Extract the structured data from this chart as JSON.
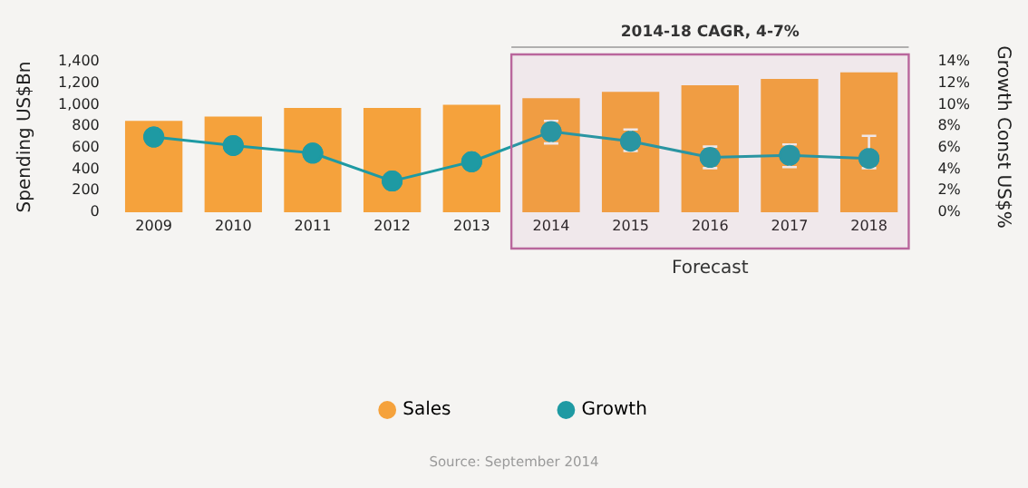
{
  "chart_data": {
    "type": "bar",
    "categories": [
      "2009",
      "2010",
      "2011",
      "2012",
      "2013",
      "2014",
      "2015",
      "2016",
      "2017",
      "2018"
    ],
    "series": [
      {
        "name": "Sales",
        "color": "#f5a23c",
        "values": [
          850,
          890,
          970,
          970,
          1000,
          1060,
          1120,
          1180,
          1240,
          1300
        ]
      },
      {
        "name": "Growth",
        "type": "line",
        "axis": "y2",
        "color": "#1e9aa3",
        "values": [
          7.0,
          6.2,
          5.5,
          2.9,
          4.7,
          7.5,
          6.6,
          5.1,
          5.3,
          5.0
        ],
        "errors": [
          null,
          null,
          null,
          null,
          null,
          [
            6.4,
            8.5
          ],
          [
            5.7,
            7.7
          ],
          [
            4.1,
            6.1
          ],
          [
            4.2,
            6.3
          ],
          [
            4.1,
            7.1
          ]
        ]
      }
    ],
    "ylabel": "Spending US$Bn",
    "y2label": "Growth Const US$%",
    "ylim": [
      0,
      1400
    ],
    "yticks": [
      0,
      200,
      400,
      600,
      800,
      {
        "value": 1000,
        "label": "1,000"
      },
      {
        "value": 1200,
        "label": "1,200"
      },
      {
        "value": 1400,
        "label": "1,400"
      }
    ],
    "y2lim": [
      0,
      14
    ],
    "y2ticks": [
      {
        "value": 0,
        "label": "0%"
      },
      {
        "value": 2,
        "label": "2%"
      },
      {
        "value": 4,
        "label": "4%"
      },
      {
        "value": 6,
        "label": "6%"
      },
      {
        "value": 8,
        "label": "8%"
      },
      {
        "value": 10,
        "label": "10%"
      },
      {
        "value": 12,
        "label": "12%"
      },
      {
        "value": 14,
        "label": "14%"
      }
    ],
    "bands": [
      {
        "axis": "x",
        "from": "2014",
        "to": "2018",
        "label": "Forecast",
        "color": "#b9669c"
      }
    ],
    "annotations": [
      "2014-18 CAGR, 4-7%",
      "Source: September 2014"
    ],
    "grid": false,
    "legend": "bottom",
    "marker": "circle"
  }
}
